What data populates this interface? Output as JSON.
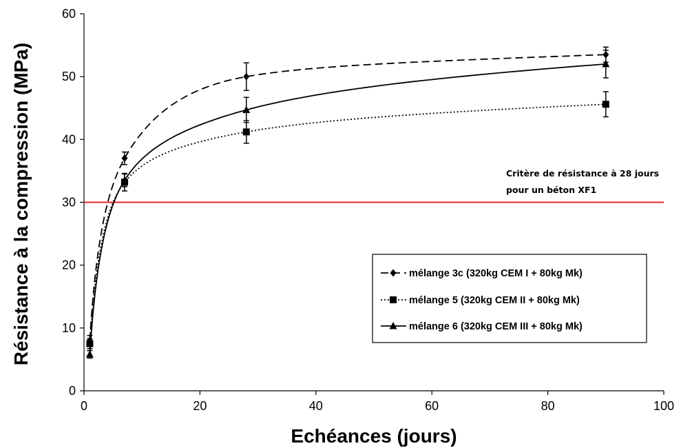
{
  "chart_data": {
    "type": "scatter",
    "xlabel": "Echéances (jours)",
    "ylabel": "Résistance à la compression (MPa)",
    "xlim": [
      0,
      100
    ],
    "ylim": [
      0,
      60
    ],
    "x_ticks": [
      "0",
      "20",
      "40",
      "60",
      "80",
      "100"
    ],
    "y_ticks": [
      "0",
      "10",
      "20",
      "30",
      "40",
      "50",
      "60"
    ],
    "grid": false,
    "legend_position": "lower-right",
    "reference_line": {
      "y": 30,
      "color": "#e8262a",
      "label_line1": "Critère de résistance à 28 jours",
      "label_line2": "pour un béton XF1"
    },
    "series": [
      {
        "name": "mélange 3c (320kg CEM I + 80kg Mk)",
        "marker": "diamond",
        "line_style": "dashed",
        "x": [
          1,
          7,
          28,
          90
        ],
        "y": [
          8.0,
          37.0,
          50.0,
          53.5
        ],
        "error": [
          0.8,
          1.0,
          2.2,
          1.2
        ]
      },
      {
        "name": "mélange 5 (320kg CEM II + 80kg Mk)",
        "marker": "square",
        "line_style": "dotted",
        "x": [
          1,
          7,
          28,
          90
        ],
        "y": [
          7.5,
          33.2,
          41.2,
          45.6
        ],
        "error": [
          0.8,
          1.4,
          1.8,
          2.0
        ]
      },
      {
        "name": "mélange 6 (320kg CEM III + 80kg Mk)",
        "marker": "triangle",
        "line_style": "solid",
        "x": [
          1,
          7,
          28,
          90
        ],
        "y": [
          5.8,
          33.5,
          44.7,
          52.0
        ],
        "error": [
          0.6,
          1.0,
          2.0,
          2.2
        ]
      }
    ]
  }
}
